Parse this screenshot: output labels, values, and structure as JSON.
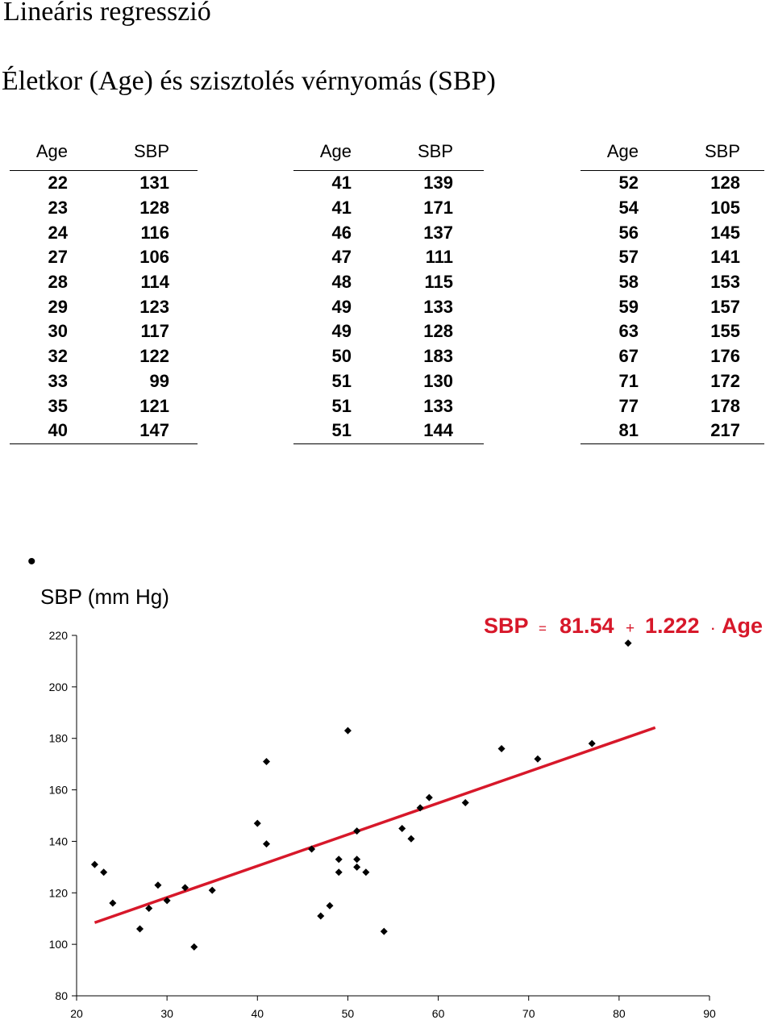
{
  "title": "Lineáris regresszió",
  "subtitle": "Életkor (Age) és szisztolés vérnyomás (SBP)",
  "tables": [
    {
      "headers": [
        "Age",
        "SBP"
      ],
      "rows": [
        [
          "22",
          "131"
        ],
        [
          "23",
          "128"
        ],
        [
          "24",
          "116"
        ],
        [
          "27",
          "106"
        ],
        [
          "28",
          "114"
        ],
        [
          "29",
          "123"
        ],
        [
          "30",
          "117"
        ],
        [
          "32",
          "122"
        ],
        [
          "33",
          "99"
        ],
        [
          "35",
          "121"
        ],
        [
          "40",
          "147"
        ]
      ]
    },
    {
      "headers": [
        "Age",
        "SBP"
      ],
      "rows": [
        [
          "41",
          "139"
        ],
        [
          "41",
          "171"
        ],
        [
          "46",
          "137"
        ],
        [
          "47",
          "111"
        ],
        [
          "48",
          "115"
        ],
        [
          "49",
          "133"
        ],
        [
          "49",
          "128"
        ],
        [
          "50",
          "183"
        ],
        [
          "51",
          "130"
        ],
        [
          "51",
          "133"
        ],
        [
          "51",
          "144"
        ]
      ]
    },
    {
      "headers": [
        "Age",
        "SBP"
      ],
      "rows": [
        [
          "52",
          "128"
        ],
        [
          "54",
          "105"
        ],
        [
          "56",
          "145"
        ],
        [
          "57",
          "141"
        ],
        [
          "58",
          "153"
        ],
        [
          "59",
          "157"
        ],
        [
          "63",
          "155"
        ],
        [
          "67",
          "176"
        ],
        [
          "71",
          "172"
        ],
        [
          "77",
          "178"
        ],
        [
          "81",
          "217"
        ]
      ]
    }
  ],
  "chart_data": {
    "type": "scatter",
    "ylabel": "SBP (mm Hg)",
    "xlabel": "",
    "xlim": [
      20,
      90
    ],
    "ylim": [
      80,
      220
    ],
    "xticks": [
      "20",
      "30",
      "40",
      "50",
      "60",
      "70",
      "80",
      "90"
    ],
    "yticks": [
      "80",
      "100",
      "120",
      "140",
      "160",
      "180",
      "200",
      "220"
    ],
    "points": [
      [
        22,
        131
      ],
      [
        23,
        128
      ],
      [
        24,
        116
      ],
      [
        27,
        106
      ],
      [
        28,
        114
      ],
      [
        29,
        123
      ],
      [
        30,
        117
      ],
      [
        32,
        122
      ],
      [
        33,
        99
      ],
      [
        35,
        121
      ],
      [
        40,
        147
      ],
      [
        41,
        139
      ],
      [
        41,
        171
      ],
      [
        46,
        137
      ],
      [
        47,
        111
      ],
      [
        48,
        115
      ],
      [
        49,
        133
      ],
      [
        49,
        128
      ],
      [
        50,
        183
      ],
      [
        51,
        130
      ],
      [
        51,
        133
      ],
      [
        51,
        144
      ],
      [
        52,
        128
      ],
      [
        54,
        105
      ],
      [
        56,
        145
      ],
      [
        57,
        141
      ],
      [
        58,
        153
      ],
      [
        59,
        157
      ],
      [
        63,
        155
      ],
      [
        67,
        176
      ],
      [
        71,
        172
      ],
      [
        77,
        178
      ],
      [
        81,
        217
      ]
    ],
    "regression": {
      "intercept": 81.54,
      "slope": 1.222,
      "x_range": [
        22,
        84
      ],
      "color": "#d7182a",
      "equation_parts": [
        "SBP",
        "=",
        "81.54",
        "+",
        "1.222",
        "·",
        "Age"
      ]
    },
    "bullet": "•"
  }
}
